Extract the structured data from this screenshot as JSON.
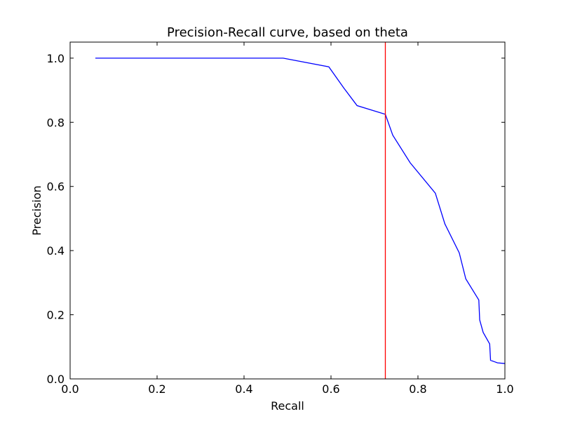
{
  "chart_data": {
    "type": "line",
    "title": "Precision-Recall curve, based on theta",
    "xlabel": "Recall",
    "ylabel": "Precision",
    "xlim": [
      0.0,
      1.0
    ],
    "ylim": [
      0.0,
      1.05
    ],
    "xticks": [
      0.0,
      0.2,
      0.4,
      0.6,
      0.8,
      1.0
    ],
    "yticks": [
      0.0,
      0.2,
      0.4,
      0.6,
      0.8,
      1.0
    ],
    "xtick_labels": [
      "0.0",
      "0.2",
      "0.4",
      "0.6",
      "0.8",
      "1.0"
    ],
    "ytick_labels": [
      "0.0",
      "0.2",
      "0.4",
      "0.6",
      "0.8",
      "1.0"
    ],
    "grid": false,
    "series": [
      {
        "color": "#0000ff",
        "x": [
          0.058,
          0.49,
          0.595,
          0.63,
          0.66,
          0.725,
          0.742,
          0.782,
          0.84,
          0.862,
          0.895,
          0.91,
          0.94,
          0.942,
          0.95,
          0.965,
          0.967,
          0.975,
          0.983,
          1.0
        ],
        "y": [
          1.0,
          1.0,
          0.973,
          0.906,
          0.852,
          0.825,
          0.76,
          0.674,
          0.579,
          0.483,
          0.393,
          0.312,
          0.246,
          0.184,
          0.145,
          0.109,
          0.058,
          0.054,
          0.05,
          0.048
        ]
      }
    ],
    "vlines": [
      {
        "x": 0.725,
        "color": "#ff0000"
      }
    ]
  }
}
